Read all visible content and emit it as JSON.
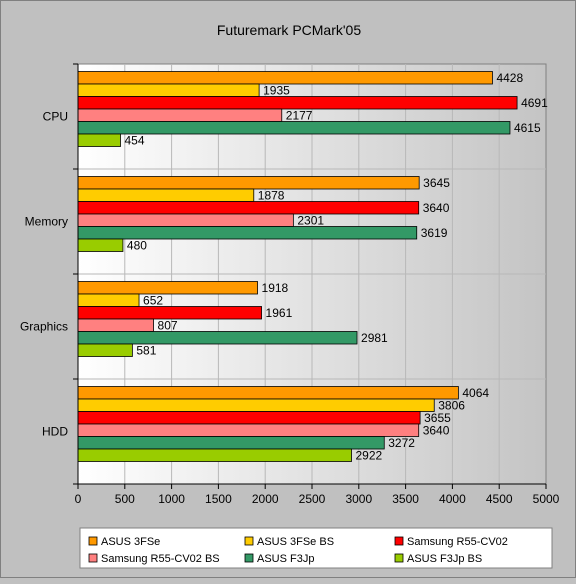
{
  "chart_data": {
    "type": "bar",
    "orientation": "horizontal",
    "title": "Futuremark PCMark'05",
    "xlabel": "",
    "ylabel": "",
    "categories": [
      "CPU",
      "Memory",
      "Graphics",
      "HDD"
    ],
    "xlim": [
      0,
      5000
    ],
    "xticks": [
      "0",
      "500",
      "1000",
      "1500",
      "2000",
      "2500",
      "3000",
      "3500",
      "4000",
      "4500",
      "5000"
    ],
    "grid": true,
    "legend_position": "bottom",
    "series": [
      {
        "name": "ASUS 3FSe",
        "color": "#ff9900",
        "values": [
          4428,
          3645,
          1918,
          4064
        ]
      },
      {
        "name": "ASUS 3FSe BS",
        "color": "#ffcc00",
        "values": [
          1935,
          1878,
          652,
          3806
        ]
      },
      {
        "name": "Samsung R55-CV02",
        "color": "#ff0000",
        "values": [
          4691,
          3640,
          1961,
          3655
        ]
      },
      {
        "name": "Samsung R55-CV02 BS",
        "color": "#ff8080",
        "values": [
          2177,
          2301,
          807,
          3640
        ]
      },
      {
        "name": "ASUS F3Jp",
        "color": "#339966",
        "values": [
          4615,
          3619,
          2981,
          3272
        ]
      },
      {
        "name": "ASUS F3Jp BS",
        "color": "#99cc00",
        "values": [
          454,
          480,
          581,
          2922
        ]
      }
    ]
  }
}
